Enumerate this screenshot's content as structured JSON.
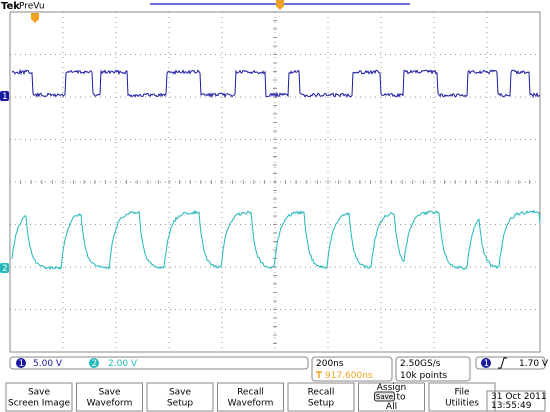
{
  "header": {
    "brand": "Tek",
    "mode": "PreVu"
  },
  "channels": [
    {
      "number": "1",
      "scale": "5.00 V"
    },
    {
      "number": "2",
      "scale": "2.00 V"
    }
  ],
  "timebase": {
    "scale": "200ns",
    "trigger_position": "917.600ns"
  },
  "acquisition": {
    "sample_rate": "2.50GS/s",
    "record_length": "10k points"
  },
  "trigger": {
    "source": "1",
    "level": "1.70 V"
  },
  "menu": [
    {
      "lines": [
        "Save",
        "Screen Image"
      ]
    },
    {
      "lines": [
        "Save",
        "Waveform"
      ]
    },
    {
      "lines": [
        "Save",
        "Setup"
      ]
    },
    {
      "lines": [
        "Recall",
        "Waveform"
      ]
    },
    {
      "lines": [
        "Recall",
        "Setup"
      ]
    },
    {
      "lines": [
        "Assign",
        "Save",
        "to",
        "All"
      ]
    },
    {
      "lines": [
        "File",
        "Utilities"
      ]
    }
  ],
  "timestamp": {
    "date": "31 Oct 2011",
    "time": "13:55:49"
  }
}
